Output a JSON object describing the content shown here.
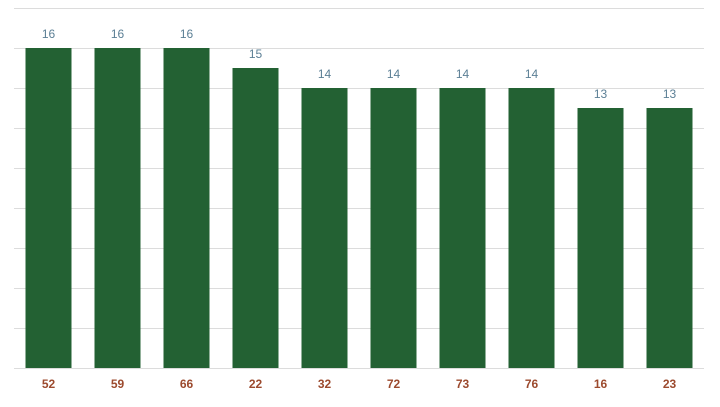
{
  "chart_data": {
    "type": "bar",
    "categories": [
      "52",
      "59",
      "66",
      "22",
      "32",
      "72",
      "73",
      "76",
      "16",
      "23"
    ],
    "values": [
      16,
      16,
      16,
      15,
      14,
      14,
      14,
      14,
      13,
      13
    ],
    "color": "#236133",
    "ylim": [
      0,
      18
    ],
    "yticks": [
      0,
      2,
      4,
      6,
      8,
      10,
      12,
      14,
      16,
      18
    ],
    "grid": true
  }
}
